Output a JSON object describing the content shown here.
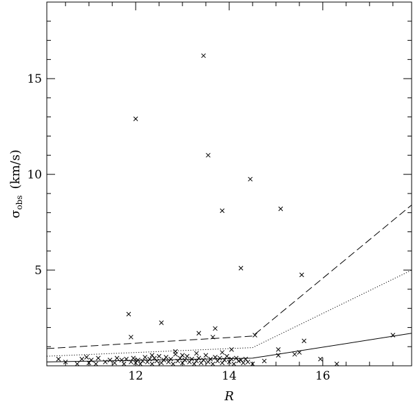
{
  "chart_data": {
    "type": "scatter",
    "xlabel": "R",
    "ylabel": "σ_obs (km/s)",
    "ylabel_symbol": "σ",
    "ylabel_sub": "obs",
    "ylabel_unit": "(km/s)",
    "xlim": [
      10.1,
      17.9
    ],
    "ylim": [
      0,
      19
    ],
    "xticks_major": [
      12,
      14,
      16
    ],
    "xtick_labels": [
      "12",
      "14",
      "16"
    ],
    "yticks_major": [
      5,
      10,
      15
    ],
    "ytick_labels": [
      "5",
      "10",
      "15"
    ],
    "x_minor_step": 0.5,
    "y_minor_step": 1,
    "grid": false,
    "legend": "none",
    "marker": "x",
    "series": [
      {
        "style": "cross",
        "points": [
          [
            13.45,
            16.2
          ],
          [
            12.0,
            12.9
          ],
          [
            13.55,
            11.0
          ],
          [
            14.45,
            9.75
          ],
          [
            13.85,
            8.1
          ],
          [
            15.1,
            8.2
          ],
          [
            14.25,
            5.1
          ],
          [
            15.55,
            4.75
          ],
          [
            11.85,
            2.7
          ],
          [
            12.55,
            2.25
          ],
          [
            11.9,
            1.5
          ],
          [
            13.7,
            1.95
          ],
          [
            13.35,
            1.7
          ],
          [
            13.65,
            1.5
          ],
          [
            14.55,
            1.6
          ],
          [
            15.6,
            1.3
          ],
          [
            15.05,
            0.85
          ],
          [
            15.05,
            0.55
          ],
          [
            15.4,
            0.6
          ],
          [
            15.5,
            0.7
          ],
          [
            15.95,
            0.35
          ],
          [
            16.3,
            0.1
          ],
          [
            17.5,
            1.6
          ],
          [
            14.75,
            0.25
          ],
          [
            10.35,
            0.35
          ],
          [
            10.5,
            0.2
          ],
          [
            10.75,
            0.1
          ],
          [
            10.85,
            0.35
          ],
          [
            10.95,
            0.45
          ],
          [
            11.0,
            0.15
          ],
          [
            11.05,
            0.3
          ],
          [
            11.15,
            0.1
          ],
          [
            11.2,
            0.4
          ],
          [
            11.35,
            0.2
          ],
          [
            11.45,
            0.3
          ],
          [
            11.55,
            0.15
          ],
          [
            11.6,
            0.4
          ],
          [
            11.7,
            0.3
          ],
          [
            11.75,
            0.1
          ],
          [
            11.8,
            0.35
          ],
          [
            11.9,
            0.2
          ],
          [
            11.95,
            0.4
          ],
          [
            12.0,
            0.15
          ],
          [
            12.05,
            0.3
          ],
          [
            12.1,
            0.1
          ],
          [
            12.15,
            0.25
          ],
          [
            12.2,
            0.45
          ],
          [
            12.25,
            0.2
          ],
          [
            12.3,
            0.35
          ],
          [
            12.35,
            0.1
          ],
          [
            12.4,
            0.4
          ],
          [
            12.45,
            0.25
          ],
          [
            12.5,
            0.5
          ],
          [
            12.55,
            0.15
          ],
          [
            12.6,
            0.3
          ],
          [
            12.65,
            0.45
          ],
          [
            12.7,
            0.2
          ],
          [
            12.75,
            0.35
          ],
          [
            12.8,
            0.1
          ],
          [
            12.85,
            0.6
          ],
          [
            12.9,
            0.25
          ],
          [
            12.95,
            0.4
          ],
          [
            13.0,
            0.15
          ],
          [
            13.05,
            0.3
          ],
          [
            13.1,
            0.5
          ],
          [
            13.15,
            0.2
          ],
          [
            13.2,
            0.35
          ],
          [
            13.25,
            0.1
          ],
          [
            13.3,
            0.25
          ],
          [
            13.35,
            0.4
          ],
          [
            13.4,
            0.15
          ],
          [
            13.45,
            0.3
          ],
          [
            13.5,
            0.55
          ],
          [
            13.55,
            0.2
          ],
          [
            13.6,
            0.35
          ],
          [
            13.65,
            0.1
          ],
          [
            13.7,
            0.45
          ],
          [
            13.75,
            0.25
          ],
          [
            13.8,
            0.4
          ],
          [
            13.85,
            0.15
          ],
          [
            13.9,
            0.3
          ],
          [
            13.95,
            0.5
          ],
          [
            14.0,
            0.2
          ],
          [
            14.05,
            0.35
          ],
          [
            14.1,
            0.1
          ],
          [
            14.15,
            0.4
          ],
          [
            14.2,
            0.25
          ],
          [
            14.25,
            0.3
          ],
          [
            14.3,
            0.15
          ],
          [
            14.35,
            0.35
          ],
          [
            14.4,
            0.2
          ],
          [
            14.5,
            0.1
          ],
          [
            12.85,
            0.75
          ],
          [
            13.0,
            0.55
          ],
          [
            13.3,
            0.65
          ],
          [
            13.85,
            0.7
          ],
          [
            14.05,
            0.85
          ],
          [
            12.35,
            0.55
          ]
        ]
      },
      {
        "style": "solid",
        "points": [
          [
            10.1,
            0.2
          ],
          [
            14.5,
            0.4
          ],
          [
            17.9,
            1.7
          ]
        ]
      },
      {
        "style": "dotted",
        "points": [
          [
            10.1,
            0.5
          ],
          [
            14.5,
            0.95
          ],
          [
            17.9,
            5.0
          ]
        ]
      },
      {
        "style": "dashed",
        "points": [
          [
            10.1,
            0.9
          ],
          [
            14.5,
            1.55
          ],
          [
            17.9,
            8.4
          ]
        ]
      }
    ]
  }
}
